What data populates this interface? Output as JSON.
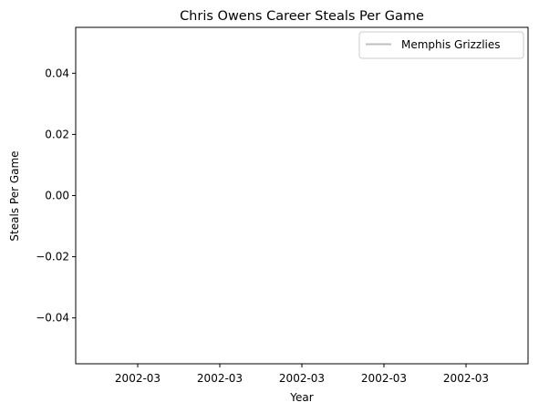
{
  "chart_data": {
    "type": "line",
    "title": "Chris Owens  Career Steals Per Game",
    "xlabel": "Year",
    "ylabel": "Steals Per Game",
    "x_tick_labels": [
      "2002-03",
      "2002-03",
      "2002-03",
      "2002-03",
      "2002-03"
    ],
    "y_ticks": [
      -0.04,
      -0.02,
      0.0,
      0.02,
      0.04
    ],
    "y_tick_labels": [
      "−0.04",
      "−0.02",
      "0.00",
      "0.02",
      "0.04"
    ],
    "ylim": [
      -0.055,
      0.055
    ],
    "grid": false,
    "legend_position": "top-right",
    "series": [
      {
        "name": "Memphis Grizzlies",
        "color": "#bfbfbf",
        "x": [],
        "values": []
      }
    ]
  }
}
